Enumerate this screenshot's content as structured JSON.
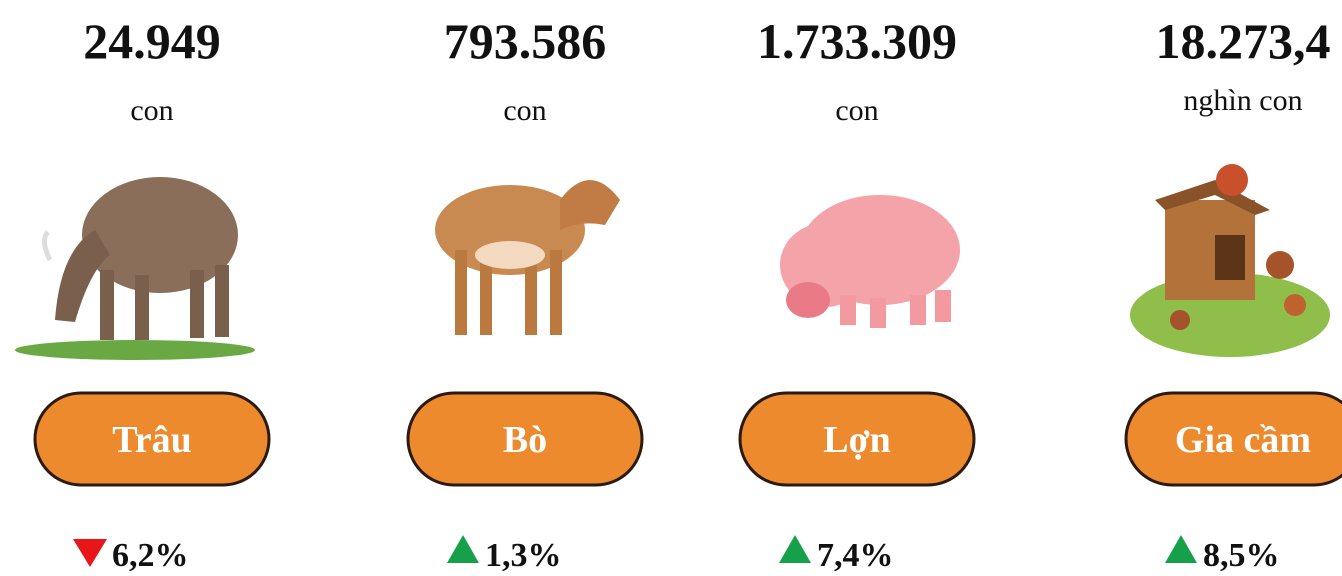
{
  "items": [
    {
      "value": "24.949",
      "unit": "con",
      "label": "Trâu",
      "change": "6,2%",
      "direction": "down"
    },
    {
      "value": "793.586",
      "unit": "con",
      "label": "Bò",
      "change": "1,3%",
      "direction": "up"
    },
    {
      "value": "1.733.309",
      "unit": "con",
      "label": "Lợn",
      "change": "7,4%",
      "direction": "up"
    },
    {
      "value": "18.273,4",
      "unit": "nghìn con",
      "label": "Gia cầm",
      "change": "8,5%",
      "direction": "up"
    }
  ]
}
